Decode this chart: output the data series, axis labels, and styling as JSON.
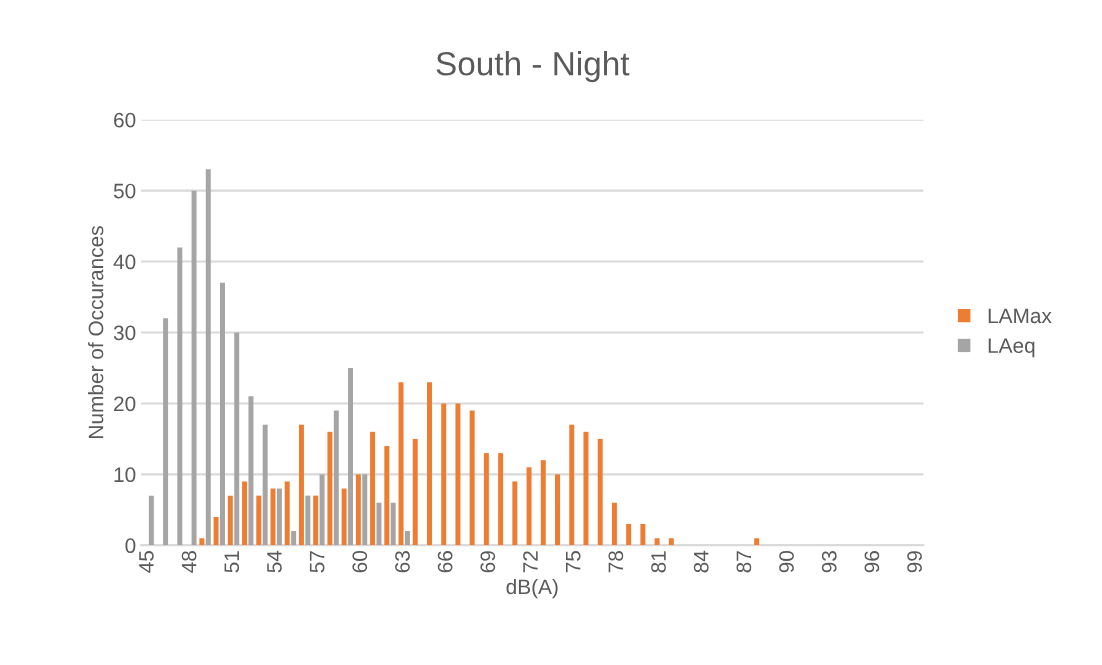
{
  "chart_data": {
    "type": "bar",
    "title": "South - Night",
    "xlabel": "dB(A)",
    "ylabel": "Number of Occurances",
    "categories": [
      "45",
      null,
      null,
      "48",
      null,
      null,
      "51",
      null,
      null,
      "54",
      null,
      null,
      "57",
      null,
      null,
      "60",
      null,
      null,
      "63",
      null,
      null,
      "66",
      null,
      null,
      "69",
      null,
      null,
      "72",
      null,
      null,
      "75",
      null,
      null,
      "78",
      null,
      null,
      "81",
      null,
      null,
      "84",
      null,
      null,
      "87",
      null,
      null,
      "90",
      null,
      null,
      "93",
      null,
      null,
      "96",
      null,
      null,
      "99"
    ],
    "series": [
      {
        "name": "LAMax",
        "color": "#ed7d31",
        "values": [
          0,
          0,
          0,
          0,
          1,
          4,
          7,
          9,
          7,
          8,
          9,
          17,
          7,
          16,
          8,
          10,
          16,
          14,
          23,
          15,
          23,
          20,
          20,
          19,
          13,
          13,
          9,
          11,
          12,
          10,
          17,
          16,
          15,
          6,
          3,
          3,
          1,
          1,
          0,
          0,
          0,
          0,
          0,
          1,
          0,
          0,
          0,
          0,
          0,
          0,
          0,
          0,
          0,
          0,
          0
        ]
      },
      {
        "name": "LAeq",
        "color": "#a5a5a5",
        "values": [
          7,
          32,
          42,
          50,
          53,
          37,
          30,
          21,
          17,
          8,
          2,
          7,
          10,
          19,
          25,
          10,
          6,
          6,
          2,
          0,
          0,
          0,
          0,
          0,
          0,
          0,
          0,
          0,
          0,
          0,
          0,
          0,
          0,
          0,
          0,
          0,
          0,
          0,
          0,
          0,
          0,
          0,
          0,
          0,
          0,
          0,
          0,
          0,
          0,
          0,
          0,
          0,
          0,
          0,
          0
        ]
      }
    ],
    "ylim": [
      0,
      60
    ],
    "yticks": [
      0,
      10,
      20,
      30,
      40,
      50,
      60
    ],
    "grid": "y",
    "legend": "right"
  }
}
